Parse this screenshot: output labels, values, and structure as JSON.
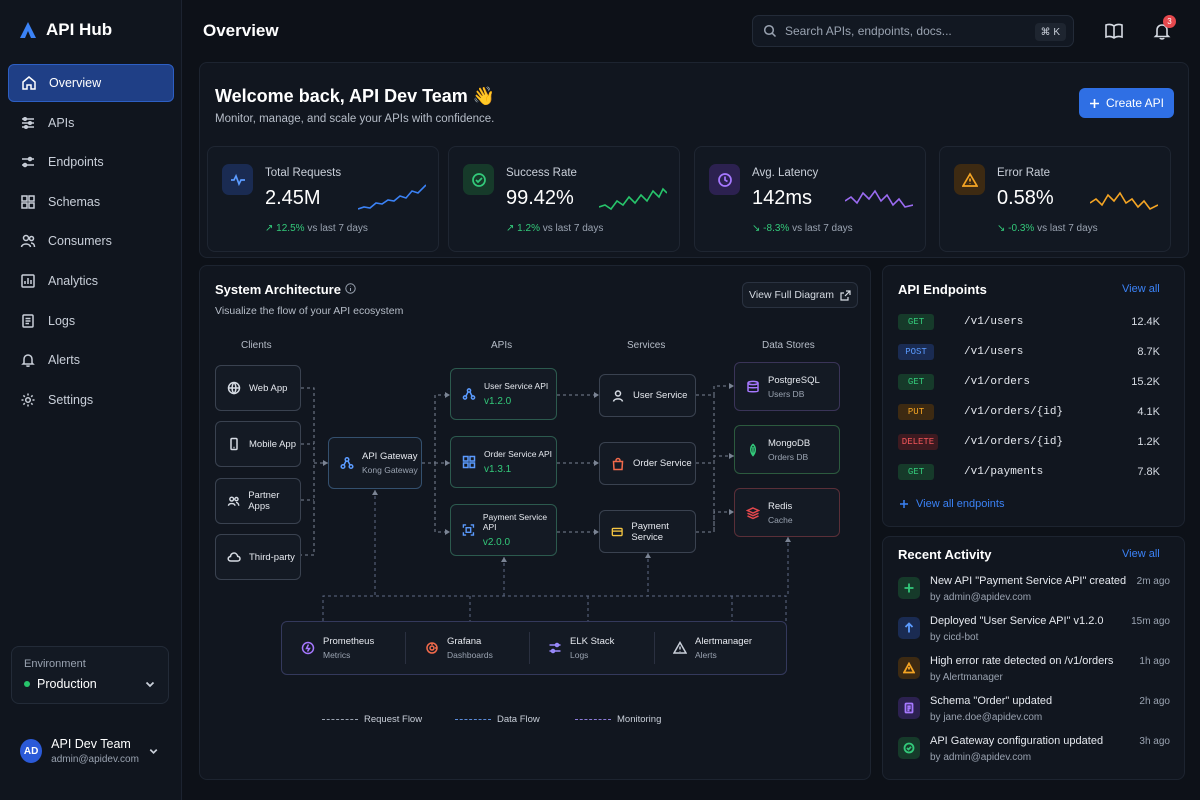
{
  "brand": {
    "name": "API Hub",
    "accent": "#3b82f6"
  },
  "sidebar": {
    "items": [
      {
        "label": "Overview",
        "icon": "home-icon",
        "active": true
      },
      {
        "label": "APIs",
        "icon": "sliders-icon"
      },
      {
        "label": "Endpoints",
        "icon": "sliders-icon"
      },
      {
        "label": "Schemas",
        "icon": "grid-icon"
      },
      {
        "label": "Consumers",
        "icon": "users-icon"
      },
      {
        "label": "Analytics",
        "icon": "bar-chart-icon"
      },
      {
        "label": "Logs",
        "icon": "document-icon"
      },
      {
        "label": "Alerts",
        "icon": "bell-icon"
      },
      {
        "label": "Settings",
        "icon": "gear-icon"
      }
    ],
    "environment": {
      "label": "Environment",
      "value": "Production"
    },
    "user": {
      "initials": "AD",
      "name": "API Dev Team",
      "email": "admin@apidev.com"
    }
  },
  "header": {
    "title": "Overview",
    "search_placeholder": "Search APIs, endpoints, docs...",
    "shortcut": "⌘ K",
    "notification_count": "3"
  },
  "welcome": {
    "title": "Welcome back, API Dev Team 👋",
    "subtitle": "Monitor, manage, and scale your APIs with confidence.",
    "create_label": "Create API"
  },
  "stats": [
    {
      "label": "Total Requests",
      "value": "2.45M",
      "change": "12.5%",
      "change_suffix": "vs last 7 days",
      "color": "#3b82f6"
    },
    {
      "label": "Success Rate",
      "value": "99.42%",
      "change": "1.2%",
      "change_suffix": "vs last 7 days",
      "color": "#27c46b"
    },
    {
      "label": "Avg. Latency",
      "value": "142ms",
      "change": "-8.3%",
      "change_suffix": "vs last 7 days",
      "color": "#9b6bf2"
    },
    {
      "label": "Error Rate",
      "value": "0.58%",
      "change": "-0.3%",
      "change_suffix": "vs last 7 days",
      "color": "#f5a524"
    }
  ],
  "architecture": {
    "title": "System Architecture",
    "subtitle": "Visualize the flow of your API ecosystem",
    "view_label": "View Full Diagram",
    "columns": {
      "clients": "Clients",
      "apis": "APIs",
      "services": "Services",
      "stores": "Data Stores"
    },
    "clients": [
      "Web App",
      "Mobile App",
      "Partner Apps",
      "Third-party"
    ],
    "gateway": {
      "title": "API Gateway",
      "sub": "Kong Gateway"
    },
    "apis": [
      {
        "title": "User Service API",
        "version": "v1.2.0"
      },
      {
        "title": "Order Service API",
        "version": "v1.3.1"
      },
      {
        "title": "Payment Service API",
        "version": "v2.0.0"
      }
    ],
    "services": [
      "User Service",
      "Order Service",
      "Payment Service"
    ],
    "stores": [
      {
        "title": "PostgreSQL",
        "sub": "Users DB"
      },
      {
        "title": "MongoDB",
        "sub": "Orders DB"
      },
      {
        "title": "Redis",
        "sub": "Cache"
      }
    ],
    "monitoring": [
      {
        "title": "Prometheus",
        "sub": "Metrics"
      },
      {
        "title": "Grafana",
        "sub": "Dashboards"
      },
      {
        "title": "ELK Stack",
        "sub": "Logs"
      },
      {
        "title": "Alertmanager",
        "sub": "Alerts"
      }
    ],
    "legend": [
      "Request Flow",
      "Data Flow",
      "Monitoring"
    ]
  },
  "endpoints": {
    "title": "API Endpoints",
    "view_all": "View all",
    "rows": [
      {
        "method": "GET",
        "path": "/v1/users",
        "count": "12.4K"
      },
      {
        "method": "POST",
        "path": "/v1/users",
        "count": "8.7K"
      },
      {
        "method": "GET",
        "path": "/v1/orders",
        "count": "15.2K"
      },
      {
        "method": "PUT",
        "path": "/v1/orders/{id}",
        "count": "4.1K"
      },
      {
        "method": "DELETE",
        "path": "/v1/orders/{id}",
        "count": "1.2K"
      },
      {
        "method": "GET",
        "path": "/v1/payments",
        "count": "7.8K"
      }
    ],
    "view_all_endpoints": "View all endpoints"
  },
  "activity": {
    "title": "Recent Activity",
    "view_all": "View all",
    "items": [
      {
        "text": "New API \"Payment Service API\" created",
        "by": "by admin@apidev.com",
        "time": "2m ago",
        "icon": "plus-icon"
      },
      {
        "text": "Deployed \"User Service API\" v1.2.0",
        "by": "by cicd-bot",
        "time": "15m ago",
        "icon": "arrow-up-icon"
      },
      {
        "text": "High error rate detected on /v1/orders",
        "by": "by Alertmanager",
        "time": "1h ago",
        "icon": "warning-icon"
      },
      {
        "text": "Schema \"Order\" updated",
        "by": "by jane.doe@apidev.com",
        "time": "2h ago",
        "icon": "document-icon"
      },
      {
        "text": "API Gateway configuration updated",
        "by": "by admin@apidev.com",
        "time": "3h ago",
        "icon": "check-shield-icon"
      }
    ]
  }
}
